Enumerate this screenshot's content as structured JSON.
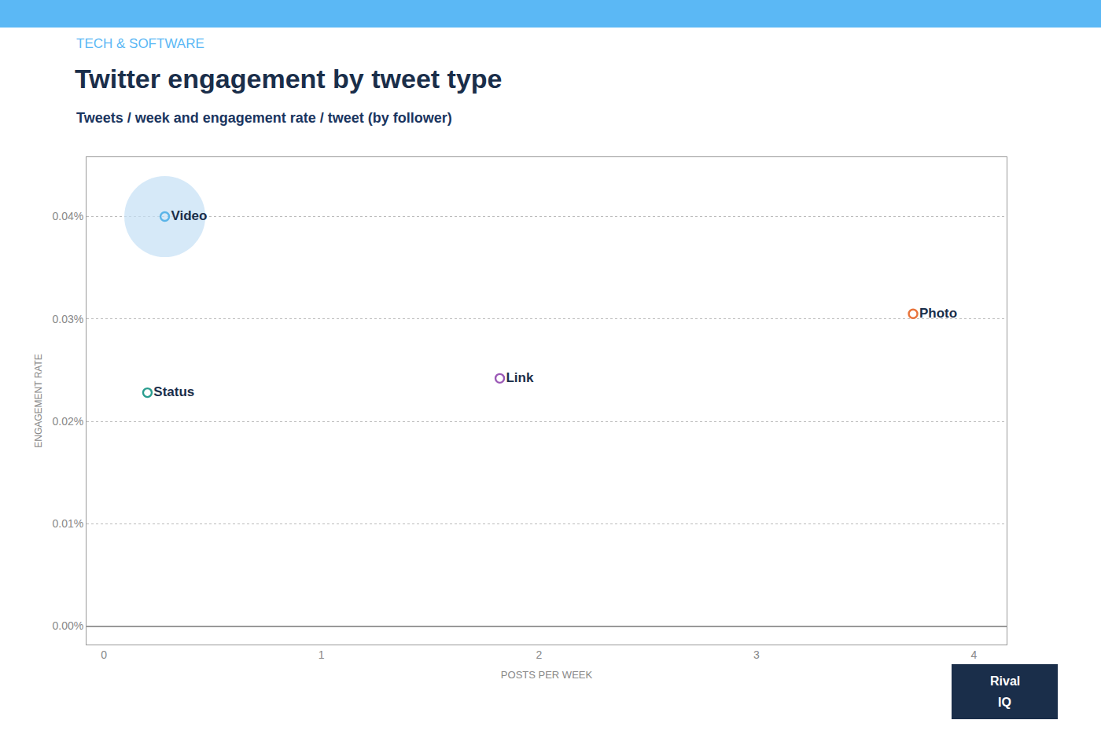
{
  "chart_data": {
    "type": "scatter",
    "title": "Twitter engagement by tweet type",
    "subtitle": "Tweets / week and engagement rate / tweet (by follower)",
    "annotations": [
      "TECH & SOFTWARE",
      "Rival",
      "IQ"
    ],
    "xlabel": "POSTS PER WEEK",
    "ylabel": "ENGAGEMENT RATE",
    "x": [
      0.28,
      0.2,
      1.82,
      3.72
    ],
    "values": [
      0.0004,
      0.000228,
      0.000242,
      0.000305
    ],
    "labels": [
      "Video",
      "Status",
      "Link",
      "Photo"
    ],
    "colors": [
      "#5ab4e8",
      "#2a9d8f",
      "#9b59b6",
      "#e8733a"
    ],
    "sizes": [
      5500,
      60,
      60,
      60
    ],
    "bubble_colors": [
      "#c5dff5",
      "#ffffff",
      "#ffffff",
      "#ffffff"
    ],
    "xlim": [
      -0.08,
      4.15
    ],
    "ylim": [
      -1.8e-05,
      0.000458
    ],
    "xticks": [
      0,
      1,
      2,
      3,
      4
    ],
    "yticks": [
      {
        "value": 0.0,
        "label": "0.00%"
      },
      {
        "value": 0.0001,
        "label": "0.01%"
      },
      {
        "value": 0.0002,
        "label": "0.02%"
      },
      {
        "value": 0.0003,
        "label": "0.03%"
      },
      {
        "value": 0.0004,
        "label": "0.04%"
      }
    ],
    "grid": true
  }
}
